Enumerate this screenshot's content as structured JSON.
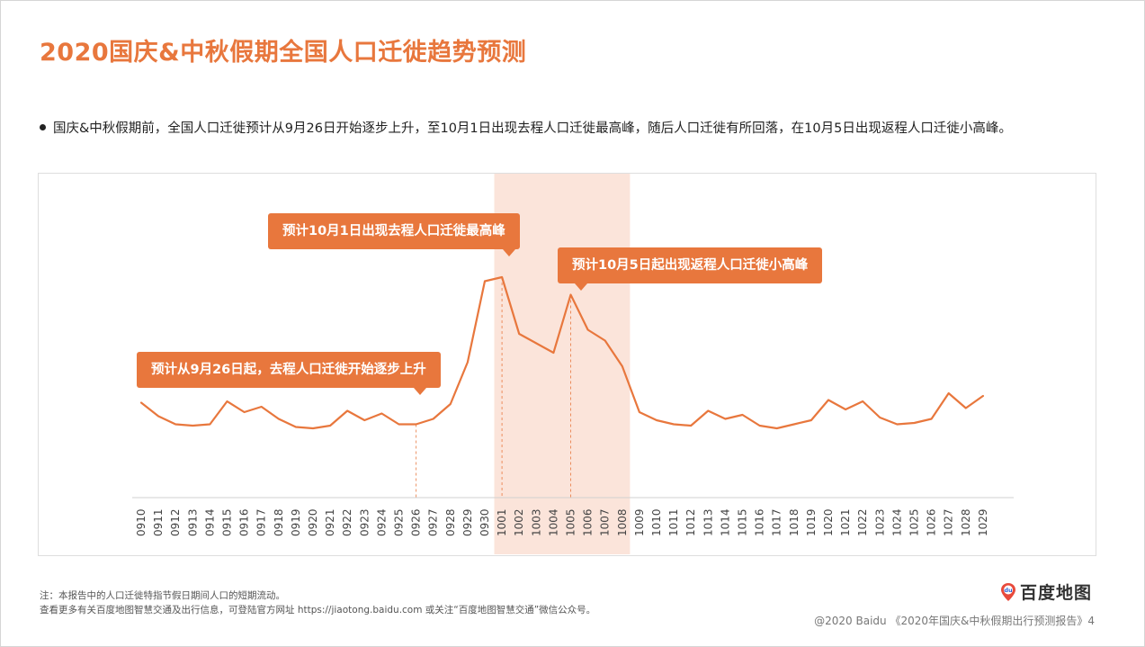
{
  "title": "2020国庆&中秋假期全国人口迁徙趋势预测",
  "bullet": "国庆&中秋假期前，全国人口迁徙预计从9月26日开始逐步上升，至10月1日出现去程人口迁徙最高峰，随后人口迁徙有所回落，在10月5日出现返程人口迁徙小高峰。",
  "callouts": {
    "c1": "预计10月1日出现去程人口迁徙最高峰",
    "c2": "预计10月5日起出现返程人口迁徙小高峰",
    "c3": "预计从9月26日起，去程人口迁徙开始逐步上升"
  },
  "notes": {
    "line1": "注：本报告中的人口迁徙特指节假日期间人口的短期流动。",
    "line2": "查看更多有关百度地图智慧交通及出行信息，可登陆官方网址 https://jiaotong.baidu.com 或关注“百度地图智慧交通”微信公众号。"
  },
  "logo": {
    "text": "百度地图",
    "mark": "du"
  },
  "footer": "@2020 Baidu 《2020年国庆&中秋假期出行预测报告》4",
  "colors": {
    "accent": "#e8773d",
    "highlight": "#fbe4da"
  },
  "chart_data": {
    "type": "line",
    "title": "",
    "xlabel": "",
    "ylabel": "",
    "grid": false,
    "y_axis_shown": false,
    "ylim": [
      0,
      100
    ],
    "categories": [
      "0910",
      "0911",
      "0912",
      "0913",
      "0914",
      "0915",
      "0916",
      "0917",
      "0918",
      "0919",
      "0920",
      "0921",
      "0922",
      "0923",
      "0924",
      "0925",
      "0926",
      "0927",
      "0928",
      "0929",
      "0930",
      "1001",
      "1002",
      "1003",
      "1004",
      "1005",
      "1006",
      "1007",
      "1008",
      "1009",
      "1010",
      "1011",
      "1012",
      "1013",
      "1014",
      "1015",
      "1016",
      "1017",
      "1018",
      "1019",
      "1020",
      "1021",
      "1022",
      "1023",
      "1024",
      "1025",
      "1026",
      "1027",
      "1028",
      "1029"
    ],
    "values": [
      34.5,
      29.5,
      26.5,
      26,
      26.5,
      35,
      31,
      33,
      28.5,
      25.5,
      25,
      26,
      31.5,
      28,
      30.5,
      26.5,
      26.5,
      28.5,
      34,
      49.5,
      79.5,
      81,
      60,
      56.5,
      53,
      74.5,
      61.5,
      57.5,
      48,
      31,
      28,
      26.5,
      26,
      31.5,
      28.5,
      30,
      26,
      25,
      26.5,
      28,
      35.5,
      32,
      35,
      29,
      26.5,
      27,
      28.5,
      38,
      32.5,
      37
    ],
    "highlight_range": [
      "1001",
      "1008"
    ],
    "markers": [
      "0926",
      "1001",
      "1005"
    ]
  }
}
